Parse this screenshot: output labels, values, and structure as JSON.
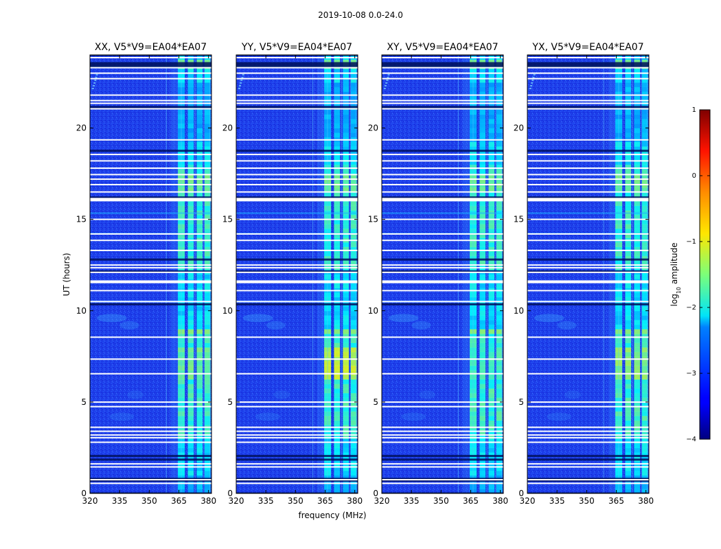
{
  "figure_title": "2019-10-08 0.0-24.0",
  "chart_data": {
    "type": "heatmap",
    "title": "2019-10-08 0.0-24.0",
    "xlabel": "frequency (MHz)",
    "ylabel": "UT (hours)",
    "xlim": [
      320,
      381.5
    ],
    "ylim": [
      0,
      24
    ],
    "x_ticks": [
      320,
      335,
      350,
      365,
      380
    ],
    "y_ticks": [
      0,
      5,
      10,
      15,
      20
    ],
    "y_tick_labels": [
      "0",
      "5",
      "10",
      "15",
      "20"
    ],
    "colormap": "jet",
    "panels": [
      {
        "title": "XX, V5*V9=EA04*EA07",
        "polarization": "XX",
        "band_strength": 1.0
      },
      {
        "title": "YY, V5*V9=EA04*EA07",
        "polarization": "YY",
        "band_strength": 1.2
      },
      {
        "title": "XY, V5*V9=EA04*EA07",
        "polarization": "XY",
        "band_strength": 0.9
      },
      {
        "title": "YX, V5*V9=EA04*EA07",
        "polarization": "YX",
        "band_strength": 1.05
      }
    ],
    "rfi_band_mhz": [
      360.5,
      381.0
    ],
    "rfi_subbands_mhz": [
      [
        364.5,
        368.0
      ],
      [
        369.5,
        372.5
      ],
      [
        374.0,
        377.0
      ],
      [
        378.0,
        381.0
      ]
    ],
    "flagged_rows_hours": [
      0.55,
      0.75,
      1.45,
      1.62,
      2.8,
      3.05,
      3.2,
      3.4,
      3.62,
      4.75,
      5.0,
      6.55,
      7.35,
      8.55,
      10.5,
      11.1,
      11.55,
      11.62,
      12.1,
      12.35,
      12.5,
      13.3,
      13.85,
      14.2,
      15.0,
      16.05,
      16.12,
      16.5,
      16.9,
      17.2,
      17.45,
      17.8,
      18.2,
      18.55,
      19.35,
      21.05,
      21.35,
      21.5,
      21.8,
      22.7,
      23.0,
      23.3,
      23.85
    ],
    "dark_rows_hours": [
      0.0,
      0.7,
      0.8,
      1.85,
      2.05,
      10.35,
      12.15,
      12.8,
      16.2,
      18.75,
      21.15,
      23.35,
      23.45,
      23.55,
      24.0
    ],
    "colorbar": {
      "label": "log10 amplitude",
      "label_base": "log",
      "label_sub": "10",
      "label_rest": " amplitude",
      "min": -4,
      "max": 1,
      "ticks": [
        "1",
        "0",
        "−1",
        "−2",
        "−3",
        "−4"
      ],
      "tick_values": [
        1,
        0,
        -1,
        -2,
        -3,
        -4
      ]
    }
  }
}
